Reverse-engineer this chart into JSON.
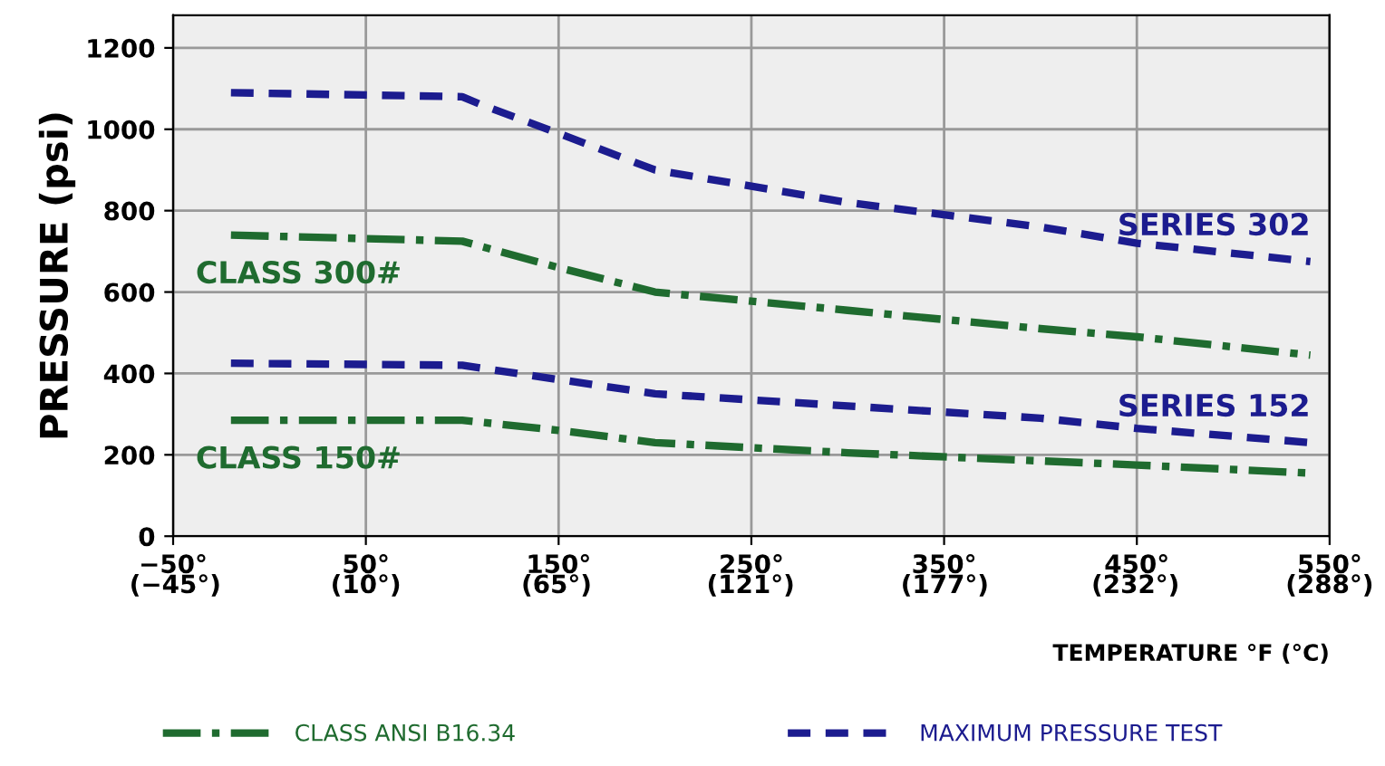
{
  "chart_data": {
    "type": "line",
    "xlabel": "TEMPERATURE °F (°C)",
    "ylabel": "PRESSURE (psi)",
    "xlim": [
      -50,
      550
    ],
    "ylim": [
      0,
      1280
    ],
    "xticks": [
      {
        "value": -50,
        "label": "−50°"
      },
      {
        "value": 50,
        "label": "50°"
      },
      {
        "value": 150,
        "label": "150°"
      },
      {
        "value": 250,
        "label": "250°"
      },
      {
        "value": 350,
        "label": "350°"
      },
      {
        "value": 450,
        "label": "450°"
      },
      {
        "value": 550,
        "label": "550°"
      }
    ],
    "x2lim": [
      -45.6,
      288
    ],
    "x2ticks": [
      {
        "value": -45,
        "label": "(−45°)"
      },
      {
        "value": 10,
        "label": "(10°)"
      },
      {
        "value": 65,
        "label": "(65°)"
      },
      {
        "value": 121,
        "label": "(121°)"
      },
      {
        "value": 177,
        "label": "(177°)"
      },
      {
        "value": 232,
        "label": "(232°)"
      },
      {
        "value": 288,
        "label": "(288°)"
      }
    ],
    "yticks": [
      0,
      200,
      400,
      600,
      800,
      1000,
      1200
    ],
    "grid": true,
    "legend": "bottom",
    "marker": "none",
    "series": [
      {
        "name": "CLASS ANSI B16.34",
        "color": "#1f6b2f",
        "line_style": "dashdot",
        "x": [
          -20,
          100,
          150,
          200,
          300,
          400,
          450,
          540
        ],
        "values": [
          740,
          725,
          660,
          600,
          555,
          510,
          490,
          445
        ]
      },
      {
        "name": "MAXIMUM PRESSURE TEST",
        "color": "#1c1c8f",
        "line_style": "dashed",
        "x": [
          -20,
          100,
          110,
          150,
          200,
          250,
          300,
          400,
          450,
          540
        ],
        "values": [
          1090,
          1080,
          1060,
          990,
          900,
          860,
          820,
          760,
          720,
          675
        ]
      },
      {
        "color": "#1f6b2f",
        "line_style": "dashdot",
        "x": [
          -20,
          100,
          150,
          200,
          300,
          400,
          450,
          540
        ],
        "values": [
          285,
          285,
          260,
          230,
          205,
          185,
          175,
          155
        ]
      },
      {
        "color": "#1c1c8f",
        "line_style": "dashed",
        "x": [
          -20,
          100,
          150,
          200,
          300,
          400,
          450,
          540
        ],
        "values": [
          425,
          420,
          385,
          350,
          320,
          290,
          265,
          230
        ]
      }
    ],
    "annotations": [
      "CLASS 300#",
      "SERIES 302",
      "CLASS 150#",
      "SERIES 152"
    ]
  }
}
